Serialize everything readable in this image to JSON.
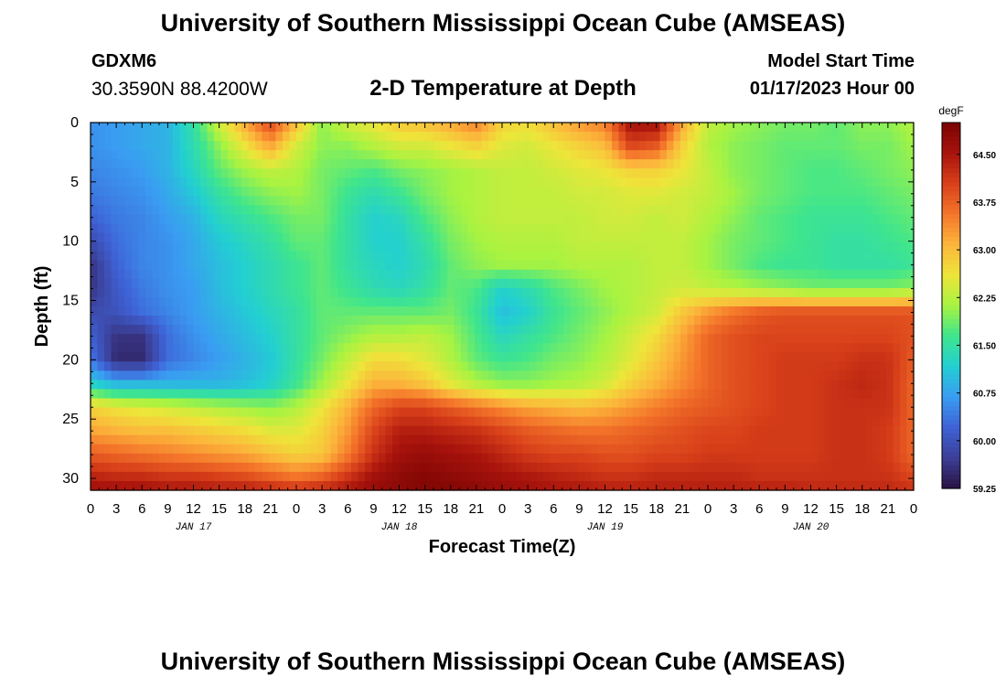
{
  "header": {
    "title": "University of Southern Mississippi Ocean Cube (AMSEAS)",
    "station": "GDXM6",
    "coordinates": "30.3590N  88.4200W",
    "subtitle": "2-D Temperature at Depth",
    "model_start_label": "Model Start Time",
    "model_start_value": "01/17/2023 Hour 00"
  },
  "footer": {
    "title": "University of Southern Mississippi Ocean Cube (AMSEAS)"
  },
  "chart_data": {
    "type": "heatmap",
    "title": "2-D Temperature at Depth",
    "xlabel": "Forecast Time(Z)",
    "ylabel": "Depth (ft)",
    "x_tick_labels": [
      "0",
      "3",
      "6",
      "9",
      "12",
      "15",
      "18",
      "21",
      "0",
      "3",
      "6",
      "9",
      "12",
      "15",
      "18",
      "21",
      "0",
      "3",
      "6",
      "9",
      "12",
      "15",
      "18",
      "21",
      "0",
      "3",
      "6",
      "9",
      "12",
      "15",
      "18",
      "21",
      "0"
    ],
    "x_day_labels": [
      {
        "label": "JAN 17",
        "hour": 12
      },
      {
        "label": "JAN 18",
        "hour": 36
      },
      {
        "label": "JAN 19",
        "hour": 60
      },
      {
        "label": "JAN 20",
        "hour": 84
      }
    ],
    "x_unit": "hours since 01/17/2023 00Z",
    "xlim": [
      0,
      96
    ],
    "y_ticks": [
      0,
      5,
      10,
      15,
      20,
      25,
      30
    ],
    "ylim": [
      31,
      0
    ],
    "colorbar": {
      "unit": "degF",
      "ticks": [
        "64.50",
        "63.75",
        "63.00",
        "62.25",
        "61.50",
        "60.75",
        "60.00",
        "59.25"
      ],
      "range": [
        59.25,
        65.0
      ],
      "colors": [
        "#2a1245",
        "#3b3f96",
        "#3f62d6",
        "#3a9cf2",
        "#22cfd2",
        "#3fe58d",
        "#a8f341",
        "#eee53a",
        "#fcb53b",
        "#f4752a",
        "#d8401a",
        "#a8130c",
        "#7a0403"
      ]
    },
    "depths": [
      0,
      2,
      4,
      6,
      8,
      10,
      12,
      14,
      16,
      18,
      20,
      22,
      24,
      26,
      28,
      30,
      31
    ],
    "hours": [
      0,
      3,
      6,
      9,
      12,
      15,
      18,
      21,
      24,
      27,
      30,
      33,
      36,
      39,
      42,
      45,
      48,
      51,
      54,
      57,
      60,
      63,
      66,
      69,
      72,
      75,
      78,
      81,
      84,
      87,
      90,
      93,
      96
    ],
    "values": [
      [
        60.6,
        60.7,
        60.8,
        60.9,
        61.5,
        62.4,
        63.2,
        64.0,
        63.0,
        62.0,
        62.4,
        62.6,
        62.9,
        63.0,
        63.2,
        63.5,
        62.8,
        62.7,
        63.0,
        63.3,
        63.5,
        64.6,
        64.6,
        63.2,
        62.3,
        62.1,
        62.0,
        61.9,
        61.9,
        61.8,
        62.0,
        62.0,
        62.2
      ],
      [
        60.6,
        60.7,
        60.8,
        60.9,
        61.4,
        62.0,
        62.6,
        63.2,
        62.4,
        62.0,
        62.0,
        62.2,
        62.4,
        62.4,
        62.6,
        62.8,
        62.5,
        62.4,
        62.6,
        62.8,
        63.0,
        64.0,
        63.8,
        62.8,
        62.2,
        62.0,
        61.9,
        61.8,
        61.8,
        61.8,
        61.9,
        61.9,
        62.1
      ],
      [
        60.5,
        60.6,
        60.7,
        60.9,
        61.3,
        61.8,
        62.1,
        62.3,
        62.2,
        61.9,
        61.8,
        61.7,
        61.9,
        62.0,
        62.1,
        62.2,
        62.3,
        62.3,
        62.4,
        62.5,
        62.6,
        62.8,
        62.8,
        62.6,
        62.3,
        62.0,
        61.9,
        61.8,
        61.7,
        61.7,
        61.8,
        61.9,
        62.0
      ],
      [
        60.4,
        60.5,
        60.6,
        60.8,
        61.1,
        61.5,
        61.8,
        62.0,
        62.1,
        61.9,
        61.6,
        61.4,
        61.6,
        61.9,
        62.1,
        62.2,
        62.3,
        62.3,
        62.3,
        62.4,
        62.4,
        62.5,
        62.5,
        62.4,
        62.3,
        62.1,
        61.9,
        61.8,
        61.7,
        61.7,
        61.7,
        61.8,
        61.9
      ],
      [
        60.2,
        60.4,
        60.5,
        60.7,
        60.9,
        61.3,
        61.5,
        61.7,
        61.9,
        61.9,
        61.5,
        61.2,
        61.3,
        61.7,
        62.0,
        62.2,
        62.3,
        62.3,
        62.3,
        62.3,
        62.4,
        62.4,
        62.3,
        62.4,
        62.2,
        62.0,
        61.8,
        61.7,
        61.6,
        61.6,
        61.6,
        61.7,
        61.8
      ],
      [
        59.9,
        60.3,
        60.5,
        60.6,
        60.8,
        61.1,
        61.3,
        61.5,
        61.8,
        61.8,
        61.5,
        61.2,
        61.2,
        61.5,
        61.9,
        62.1,
        62.2,
        62.2,
        62.2,
        62.3,
        62.3,
        62.3,
        62.3,
        62.3,
        62.1,
        61.9,
        61.8,
        61.7,
        61.6,
        61.5,
        61.5,
        61.6,
        61.7
      ],
      [
        59.6,
        60.2,
        60.5,
        60.6,
        60.8,
        61.0,
        61.2,
        61.4,
        61.6,
        61.8,
        61.5,
        61.3,
        61.2,
        61.4,
        61.8,
        62.0,
        62.1,
        62.1,
        62.1,
        62.2,
        62.2,
        62.2,
        62.3,
        62.3,
        62.1,
        61.9,
        61.7,
        61.6,
        61.6,
        61.5,
        61.5,
        61.5,
        61.6
      ],
      [
        59.6,
        60.1,
        60.4,
        60.6,
        60.7,
        61.0,
        61.2,
        61.4,
        61.6,
        61.8,
        61.6,
        61.4,
        61.3,
        61.5,
        61.8,
        61.7,
        61.2,
        61.4,
        61.7,
        61.9,
        62.1,
        62.2,
        62.3,
        62.4,
        62.3,
        62.2,
        62.1,
        62.0,
        61.9,
        61.9,
        61.9,
        61.9,
        62.0
      ],
      [
        59.9,
        60.0,
        60.3,
        60.5,
        60.7,
        60.9,
        61.1,
        61.3,
        61.5,
        61.8,
        61.8,
        61.8,
        61.8,
        61.8,
        61.9,
        61.6,
        61.0,
        61.2,
        61.6,
        61.8,
        62.0,
        62.2,
        62.4,
        62.9,
        63.3,
        63.6,
        63.8,
        63.9,
        63.9,
        63.9,
        63.9,
        63.9,
        63.9
      ],
      [
        60.2,
        59.6,
        59.6,
        60.3,
        60.6,
        60.8,
        61.0,
        61.2,
        61.5,
        61.8,
        62.0,
        62.2,
        62.2,
        62.3,
        62.1,
        61.7,
        61.3,
        61.5,
        61.7,
        61.9,
        62.1,
        62.4,
        62.7,
        63.2,
        63.7,
        63.9,
        64.0,
        64.0,
        64.0,
        64.0,
        64.0,
        64.0,
        63.9
      ],
      [
        60.4,
        59.5,
        59.5,
        60.3,
        60.5,
        60.7,
        60.9,
        61.1,
        61.5,
        61.9,
        62.3,
        62.7,
        62.7,
        62.5,
        62.2,
        61.8,
        61.6,
        61.7,
        61.9,
        62.0,
        62.2,
        62.5,
        62.9,
        63.3,
        63.7,
        63.9,
        64.0,
        64.1,
        64.1,
        64.1,
        64.2,
        64.2,
        63.8
      ],
      [
        61.2,
        60.9,
        60.9,
        60.9,
        60.9,
        60.9,
        61.0,
        61.2,
        61.6,
        62.1,
        62.6,
        63.1,
        63.1,
        62.9,
        62.5,
        62.2,
        62.0,
        62.0,
        62.1,
        62.2,
        62.4,
        62.8,
        63.1,
        63.4,
        63.7,
        63.9,
        64.0,
        64.1,
        64.1,
        64.2,
        64.3,
        64.2,
        63.7
      ],
      [
        62.8,
        62.6,
        62.5,
        62.4,
        62.3,
        62.2,
        62.1,
        62.0,
        62.2,
        62.6,
        63.1,
        63.7,
        64.0,
        64.0,
        63.8,
        63.6,
        63.4,
        63.2,
        63.1,
        63.0,
        63.1,
        63.3,
        63.5,
        63.7,
        63.8,
        63.9,
        64.0,
        64.1,
        64.1,
        64.2,
        64.2,
        64.2,
        63.7
      ],
      [
        63.2,
        63.1,
        63.0,
        63.0,
        62.9,
        62.8,
        62.7,
        62.5,
        62.5,
        62.8,
        63.3,
        64.0,
        64.4,
        64.4,
        64.3,
        64.2,
        64.0,
        63.8,
        63.7,
        63.6,
        63.6,
        63.7,
        63.8,
        63.9,
        64.0,
        64.0,
        64.1,
        64.1,
        64.1,
        64.2,
        64.2,
        64.1,
        63.7
      ],
      [
        63.8,
        63.7,
        63.6,
        63.5,
        63.4,
        63.3,
        63.2,
        63.0,
        62.8,
        62.9,
        63.5,
        64.2,
        64.6,
        64.7,
        64.6,
        64.5,
        64.3,
        64.1,
        64.0,
        64.0,
        63.9,
        63.9,
        64.0,
        64.0,
        64.1,
        64.1,
        64.1,
        64.1,
        64.1,
        64.2,
        64.2,
        64.1,
        63.7
      ],
      [
        64.4,
        64.3,
        64.3,
        64.2,
        64.2,
        64.1,
        64.0,
        63.8,
        63.6,
        63.8,
        64.2,
        64.6,
        64.8,
        64.9,
        64.8,
        64.7,
        64.6,
        64.5,
        64.4,
        64.3,
        64.2,
        64.2,
        64.3,
        64.3,
        64.3,
        64.3,
        64.2,
        64.2,
        64.2,
        64.2,
        64.2,
        64.2,
        64.0
      ],
      [
        64.6,
        64.6,
        64.6,
        64.5,
        64.5,
        64.4,
        64.4,
        64.3,
        64.2,
        64.3,
        64.5,
        64.7,
        64.8,
        64.9,
        64.9,
        64.8,
        64.7,
        64.6,
        64.5,
        64.5,
        64.4,
        64.4,
        64.4,
        64.4,
        64.4,
        64.4,
        64.4,
        64.4,
        64.3,
        64.3,
        64.3,
        64.3,
        64.2
      ]
    ]
  }
}
